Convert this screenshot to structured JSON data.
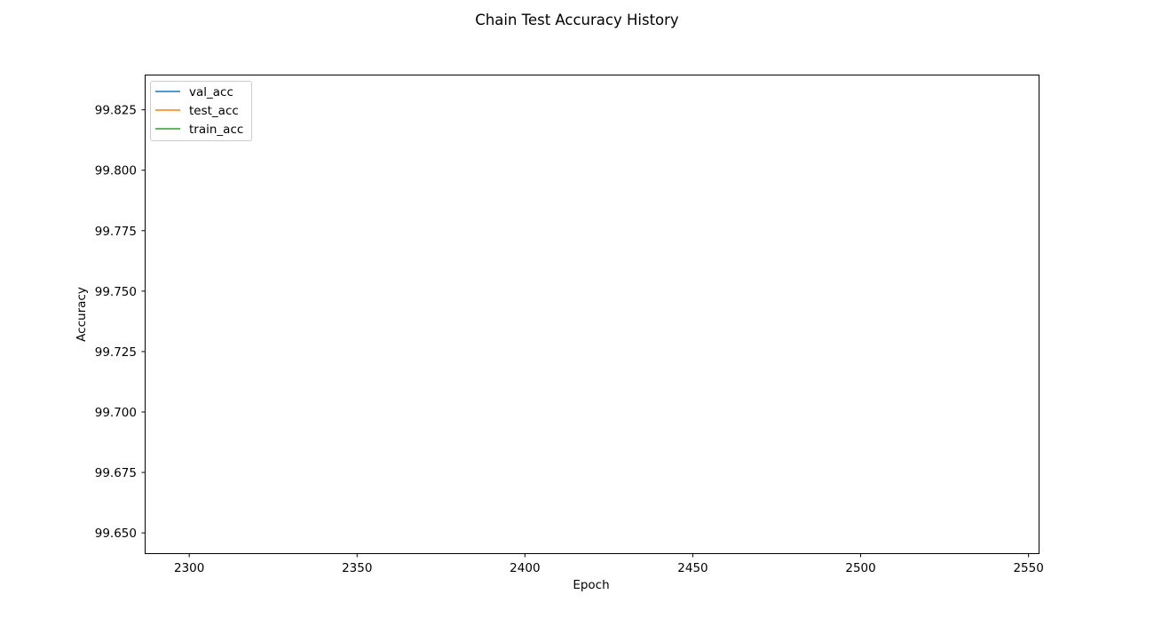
{
  "chart_data": {
    "type": "line",
    "title": "Chain Test Accuracy History",
    "xlabel": "Epoch",
    "ylabel": "Accuracy",
    "xlim": [
      2287,
      2553
    ],
    "ylim": [
      99.6416,
      99.8392
    ],
    "xticks": [
      2300,
      2350,
      2400,
      2450,
      2500,
      2550
    ],
    "xtick_labels": [
      "2300",
      "2350",
      "2400",
      "2450",
      "2500",
      "2550"
    ],
    "yticks": [
      99.65,
      99.675,
      99.7,
      99.725,
      99.75,
      99.775,
      99.8,
      99.825
    ],
    "ytick_labels": [
      "99.650",
      "99.675",
      "99.700",
      "99.725",
      "99.750",
      "99.775",
      "99.800",
      "99.825"
    ],
    "grid": false,
    "legend_position": "top-left",
    "series": [
      {
        "name": "val_acc",
        "color": "#1f77b4",
        "x": [],
        "y": []
      },
      {
        "name": "test_acc",
        "color": "#ff7f0e",
        "x": [],
        "y": []
      },
      {
        "name": "train_acc",
        "color": "#2ca02c",
        "x": [],
        "y": []
      }
    ]
  }
}
